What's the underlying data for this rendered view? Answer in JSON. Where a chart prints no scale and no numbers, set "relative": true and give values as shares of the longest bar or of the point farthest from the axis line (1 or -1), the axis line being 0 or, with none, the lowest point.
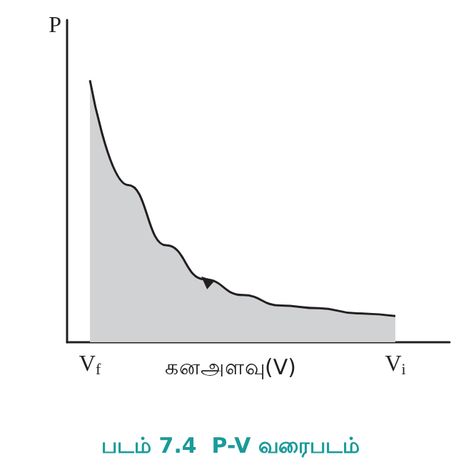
{
  "chart_data": {
    "type": "area",
    "title": "படம் 7.4  P-V வரைபடம்",
    "xlabel": "கனஅளவு(V)",
    "ylabel": "P",
    "categories": [
      "V$_{f}$",
      null,
      null,
      null,
      null,
      null,
      null,
      null,
      "V$_{i}$"
    ],
    "series": [
      {
        "color": "#d1d2d4",
        "values": [
          1.0,
          0.6,
          0.37,
          0.24,
          0.18,
          0.14,
          0.13,
          0.11,
          0.1
        ]
      }
    ],
    "relative": true,
    "tick_labels": "x",
    "grid": false,
    "marker": "none"
  }
}
